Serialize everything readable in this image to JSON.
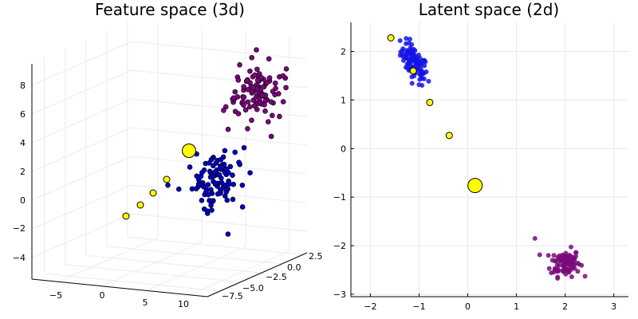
{
  "chart_data": [
    {
      "type": "scatter3d",
      "title": "Feature space (3d)",
      "x_ticks": [
        "−5",
        "0",
        "5",
        "10"
      ],
      "y_ticks": [
        "−7.5",
        "−5.0",
        "−2.5",
        "0.0",
        "2.5"
      ],
      "z_ticks": [
        "−4",
        "−2",
        "0",
        "2",
        "4",
        "6",
        "8"
      ],
      "grid": true,
      "legend": "none",
      "series": [
        {
          "color": "#0000c8",
          "cluster_center": [
            0,
            -1.0,
            -0.5
          ],
          "count": 100
        },
        {
          "color": "#800080",
          "cluster_center": [
            5,
            0.5,
            5.5
          ],
          "count": 100
        },
        {
          "color": "#ffff00",
          "marker": "large circles",
          "points_screen_hint": "interpolation between clusters"
        }
      ]
    },
    {
      "type": "scatter",
      "title": "Latent space (2d)",
      "xlim": [
        -2.4,
        3.3
      ],
      "ylim": [
        -3.05,
        2.6
      ],
      "x_ticks": [
        -2,
        -1,
        0,
        1,
        2,
        3
      ],
      "y_ticks": [
        -3,
        -2,
        -1,
        0,
        1,
        2
      ],
      "x_tick_labels": [
        "−2",
        "−1",
        "0",
        "1",
        "2",
        "3"
      ],
      "y_tick_labels": [
        "−3",
        "−2",
        "−1",
        "0",
        "1",
        "2"
      ],
      "grid": true,
      "legend": "none",
      "series": [
        {
          "color": "#1414e6",
          "center": [
            -1.1,
            1.75
          ],
          "spread": [
            0.14,
            0.17
          ],
          "count": 100
        },
        {
          "color": "#7a0a7a",
          "center": [
            2.0,
            -2.35
          ],
          "spread": [
            0.15,
            0.14
          ],
          "count": 100
        },
        {
          "color": "#ffff00",
          "points": [
            {
              "x": -1.58,
              "y": 2.28,
              "size": "small"
            },
            {
              "x": -1.12,
              "y": 1.6,
              "size": "small"
            },
            {
              "x": -0.78,
              "y": 0.95,
              "size": "small"
            },
            {
              "x": -0.38,
              "y": 0.27,
              "size": "small"
            },
            {
              "x": 0.15,
              "y": -0.76,
              "size": "large"
            }
          ]
        }
      ]
    }
  ]
}
